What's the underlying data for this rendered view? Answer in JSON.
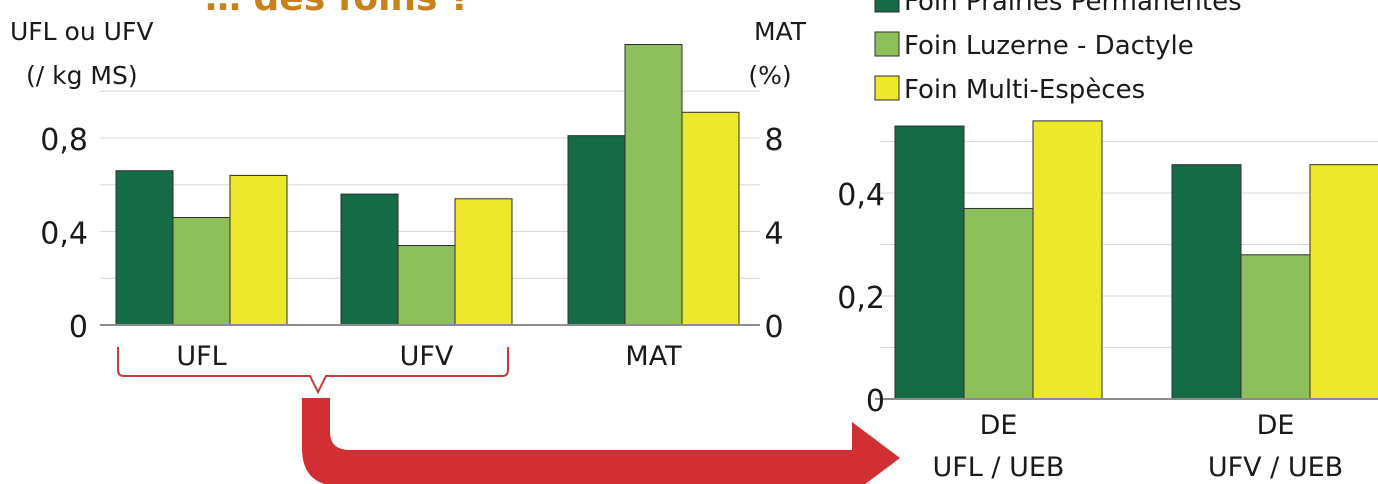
{
  "header_fragment": "… des foins ?",
  "colors": {
    "series": [
      "#166b47",
      "#8dc05a",
      "#eee82a"
    ],
    "accent": "#c53c3f",
    "grid": "#d9d9d9",
    "axis": "#8c8c8c",
    "title": "#c8821b",
    "text": "#1a1a1a"
  },
  "legend": {
    "position": "top-right",
    "items": [
      "Foin Prairies Permanentes",
      "Foin Luzerne - Dactyle",
      "Foin Multi-Espèces"
    ]
  },
  "chart_data": [
    {
      "type": "bar",
      "left_axis_label": [
        "UFL ou UFV",
        "(/ kg MS)"
      ],
      "right_axis_label": [
        "MAT",
        "(%)"
      ],
      "left_ticks": [
        "0",
        "0,4",
        "0,8"
      ],
      "right_ticks": [
        "0",
        "4",
        "8"
      ],
      "ylim_left": [
        0,
        1.2
      ],
      "ylim_right": [
        0,
        12
      ],
      "grid": true,
      "categories": [
        "UFL",
        "UFV",
        "MAT"
      ],
      "axis_for_category": [
        "left",
        "left",
        "right"
      ],
      "series": [
        {
          "name": "Foin Prairies Permanentes",
          "values": [
            0.66,
            0.56,
            8.1
          ]
        },
        {
          "name": "Foin Luzerne - Dactyle",
          "values": [
            0.46,
            0.34,
            12.0
          ]
        },
        {
          "name": "Foin Multi-Espèces",
          "values": [
            0.64,
            0.54,
            9.1
          ]
        }
      ]
    },
    {
      "type": "bar",
      "y_ticks": [
        "0",
        "0,2",
        "0,4"
      ],
      "ylim": [
        0,
        0.55
      ],
      "grid": true,
      "categories": [
        [
          "DE",
          "UFL / UEB"
        ],
        [
          "DE",
          "UFV / UEB"
        ]
      ],
      "series": [
        {
          "name": "Foin Prairies Permanentes",
          "values": [
            0.53,
            0.455
          ]
        },
        {
          "name": "Foin Luzerne - Dactyle",
          "values": [
            0.37,
            0.28
          ]
        },
        {
          "name": "Foin Multi-Espèces",
          "values": [
            0.54,
            0.455
          ]
        }
      ]
    }
  ]
}
